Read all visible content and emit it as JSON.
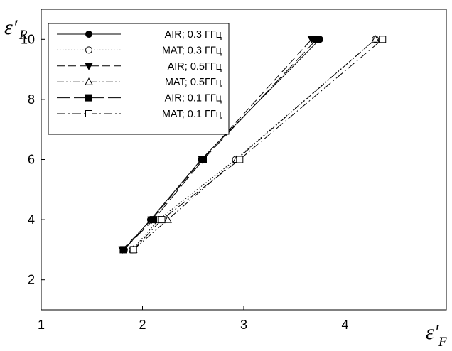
{
  "chart_data": {
    "type": "scatter",
    "xlabel": "ε′",
    "xlabel_sub": "F",
    "ylabel": "ε′",
    "ylabel_sub": "R",
    "xlim": [
      1,
      5
    ],
    "ylim": [
      1,
      11
    ],
    "xticks": [
      1,
      2,
      3,
      4
    ],
    "yticks": [
      2,
      4,
      6,
      8,
      10
    ],
    "grid": false,
    "legend_position": "top-left",
    "series": [
      {
        "name": "AIR; 0.3 ГГц",
        "line": "solid",
        "marker": "circle-filled",
        "x": [
          1.82,
          2.08,
          2.58,
          3.75
        ],
        "y": [
          3,
          4,
          6,
          10
        ]
      },
      {
        "name": "MAT; 0.3 ГГц",
        "line": "dotted",
        "marker": "circle-open",
        "x": [
          1.9,
          2.16,
          2.92,
          4.3
        ],
        "y": [
          3,
          4,
          6,
          10
        ]
      },
      {
        "name": "AIR; 0.5ГГц",
        "line": "dashed",
        "marker": "triangle-down-filled",
        "x": [
          1.8,
          2.09,
          2.59,
          3.67
        ],
        "y": [
          3,
          4,
          6,
          10
        ]
      },
      {
        "name": "MAT; 0.5ГГц",
        "line": "dashdotdot",
        "marker": "triangle-up-open",
        "x": [
          1.91,
          2.25,
          2.93,
          4.3
        ],
        "y": [
          3,
          4,
          6,
          10
        ]
      },
      {
        "name": "AIR; 0.1 ГГц",
        "line": "longdash",
        "marker": "square-filled",
        "x": [
          1.81,
          2.11,
          2.6,
          3.72
        ],
        "y": [
          3,
          4,
          6,
          10
        ]
      },
      {
        "name": "MAT; 0.1 ГГц",
        "line": "dashdot",
        "marker": "square-open",
        "x": [
          1.91,
          2.19,
          2.96,
          4.37
        ],
        "y": [
          3,
          4,
          6,
          10
        ]
      }
    ]
  }
}
